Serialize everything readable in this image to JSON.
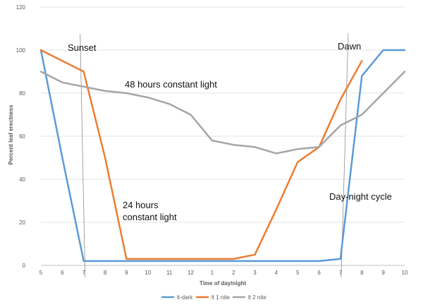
{
  "chart_data": {
    "type": "line",
    "categories": [
      "5",
      "6",
      "7",
      "8",
      "9",
      "10",
      "11",
      "12",
      "1",
      "2",
      "3",
      "4",
      "5",
      "6",
      "7",
      "8",
      "9",
      "10"
    ],
    "series": [
      {
        "name": "lt-dark",
        "color": "#5B9BD5",
        "values": [
          100,
          50,
          2,
          2,
          2,
          2,
          2,
          2,
          2,
          2,
          2,
          2,
          2,
          2,
          3,
          88,
          100,
          100
        ]
      },
      {
        "name": "lt 1 nite",
        "color": "#ED7D31",
        "values": [
          100,
          95,
          90,
          50,
          3,
          3,
          3,
          3,
          3,
          3,
          5,
          26,
          48,
          55,
          77,
          95,
          null,
          null
        ]
      },
      {
        "name": "lt 2 nite",
        "color": "#A5A5A5",
        "values": [
          90,
          85,
          83,
          81,
          80,
          78,
          75,
          70,
          58,
          56,
          55,
          52,
          54,
          55,
          65,
          70,
          80,
          90
        ]
      }
    ],
    "xlabel": "Time of day/night",
    "ylabel": "Percent leaf erectness",
    "ylim": [
      0,
      120
    ],
    "yticks": [
      "0",
      "20",
      "40",
      "60",
      "80",
      "100",
      "120"
    ],
    "grid": true,
    "legend_position": "bottom",
    "annotations": [
      {
        "id": "sunset",
        "text": "Sunset"
      },
      {
        "id": "dawn",
        "text": "Dawn"
      },
      {
        "id": "light48",
        "text": "48 hours constant light"
      },
      {
        "id": "light24a",
        "text": "24 hours"
      },
      {
        "id": "light24b",
        "text": "constant light"
      },
      {
        "id": "daynight",
        "text": "Day-night cycle"
      }
    ]
  }
}
